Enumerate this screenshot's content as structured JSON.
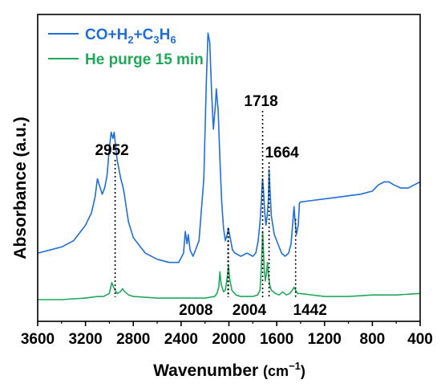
{
  "chart_data": {
    "type": "line",
    "xlabel": "Wavenumber",
    "xlabel_unit": "(cm",
    "xlabel_unit_sup": "−1",
    "xlabel_unit_close": ")",
    "ylabel": "Absorbance (a.u.)",
    "xlim": [
      3600,
      400
    ],
    "x_reversed": true,
    "x_ticks": [
      3600,
      3200,
      2800,
      2400,
      2000,
      1600,
      1200,
      800,
      400
    ],
    "y_ticks_shown": false,
    "grid": false,
    "legend_position": "top-left",
    "legend": {
      "entry1": {
        "p1": "CO+H",
        "s1": "2",
        "p2": "+C",
        "s2": "3",
        "p3": "H",
        "s3": "6"
      },
      "entry2": "He purge 15 min"
    },
    "series": [
      {
        "name": "CO+H2+C3H6",
        "color": "#1f6fd6",
        "points": [
          [
            3600,
            0.18
          ],
          [
            3500,
            0.19
          ],
          [
            3400,
            0.2
          ],
          [
            3300,
            0.22
          ],
          [
            3200,
            0.27
          ],
          [
            3150,
            0.31
          ],
          [
            3120,
            0.36
          ],
          [
            3100,
            0.42
          ],
          [
            3085,
            0.4
          ],
          [
            3060,
            0.37
          ],
          [
            3040,
            0.39
          ],
          [
            3020,
            0.43
          ],
          [
            3000,
            0.52
          ],
          [
            2985,
            0.57
          ],
          [
            2970,
            0.55
          ],
          [
            2960,
            0.57
          ],
          [
            2952,
            0.54
          ],
          [
            2935,
            0.48
          ],
          [
            2920,
            0.45
          ],
          [
            2905,
            0.42
          ],
          [
            2890,
            0.4
          ],
          [
            2875,
            0.37
          ],
          [
            2860,
            0.33
          ],
          [
            2840,
            0.28
          ],
          [
            2800,
            0.23
          ],
          [
            2760,
            0.21
          ],
          [
            2700,
            0.18
          ],
          [
            2600,
            0.16
          ],
          [
            2500,
            0.15
          ],
          [
            2420,
            0.15
          ],
          [
            2380,
            0.18
          ],
          [
            2365,
            0.25
          ],
          [
            2350,
            0.21
          ],
          [
            2340,
            0.24
          ],
          [
            2325,
            0.19
          ],
          [
            2300,
            0.17
          ],
          [
            2250,
            0.22
          ],
          [
            2210,
            0.42
          ],
          [
            2190,
            0.72
          ],
          [
            2175,
            0.89
          ],
          [
            2160,
            0.86
          ],
          [
            2145,
            0.7
          ],
          [
            2130,
            0.58
          ],
          [
            2115,
            0.65
          ],
          [
            2105,
            0.71
          ],
          [
            2090,
            0.64
          ],
          [
            2075,
            0.48
          ],
          [
            2060,
            0.34
          ],
          [
            2045,
            0.26
          ],
          [
            2030,
            0.22
          ],
          [
            2015,
            0.24
          ],
          [
            2005,
            0.26
          ],
          [
            1990,
            0.23
          ],
          [
            1970,
            0.19
          ],
          [
            1950,
            0.18
          ],
          [
            1900,
            0.17
          ],
          [
            1850,
            0.18
          ],
          [
            1800,
            0.17
          ],
          [
            1775,
            0.18
          ],
          [
            1755,
            0.22
          ],
          [
            1740,
            0.28
          ],
          [
            1728,
            0.35
          ],
          [
            1722,
            0.4
          ],
          [
            1718,
            0.42
          ],
          [
            1712,
            0.39
          ],
          [
            1700,
            0.31
          ],
          [
            1690,
            0.27
          ],
          [
            1680,
            0.3
          ],
          [
            1670,
            0.35
          ],
          [
            1664,
            0.45
          ],
          [
            1656,
            0.38
          ],
          [
            1645,
            0.3
          ],
          [
            1620,
            0.24
          ],
          [
            1590,
            0.21
          ],
          [
            1560,
            0.18
          ],
          [
            1530,
            0.17
          ],
          [
            1500,
            0.18
          ],
          [
            1480,
            0.21
          ],
          [
            1465,
            0.28
          ],
          [
            1455,
            0.33
          ],
          [
            1448,
            0.29
          ],
          [
            1435,
            0.24
          ],
          [
            1420,
            0.27
          ],
          [
            1410,
            0.34
          ],
          [
            1400,
            0.345
          ],
          [
            1300,
            0.35
          ],
          [
            1200,
            0.355
          ],
          [
            1100,
            0.36
          ],
          [
            1000,
            0.365
          ],
          [
            900,
            0.37
          ],
          [
            800,
            0.38
          ],
          [
            750,
            0.4
          ],
          [
            700,
            0.41
          ],
          [
            660,
            0.41
          ],
          [
            620,
            0.4
          ],
          [
            560,
            0.39
          ],
          [
            500,
            0.39
          ],
          [
            450,
            0.4
          ],
          [
            400,
            0.41
          ]
        ]
      },
      {
        "name": "He purge 15 min",
        "color": "#1faa5a",
        "points": [
          [
            3600,
            0.03
          ],
          [
            3400,
            0.03
          ],
          [
            3200,
            0.035
          ],
          [
            3100,
            0.04
          ],
          [
            3050,
            0.04
          ],
          [
            3000,
            0.05
          ],
          [
            2980,
            0.085
          ],
          [
            2965,
            0.07
          ],
          [
            2952,
            0.06
          ],
          [
            2935,
            0.05
          ],
          [
            2910,
            0.055
          ],
          [
            2890,
            0.065
          ],
          [
            2870,
            0.055
          ],
          [
            2840,
            0.045
          ],
          [
            2800,
            0.04
          ],
          [
            2600,
            0.035
          ],
          [
            2400,
            0.035
          ],
          [
            2200,
            0.035
          ],
          [
            2120,
            0.04
          ],
          [
            2100,
            0.05
          ],
          [
            2085,
            0.07
          ],
          [
            2075,
            0.12
          ],
          [
            2065,
            0.08
          ],
          [
            2045,
            0.055
          ],
          [
            2030,
            0.06
          ],
          [
            2015,
            0.1
          ],
          [
            2004,
            0.14
          ],
          [
            1995,
            0.1
          ],
          [
            1975,
            0.06
          ],
          [
            1940,
            0.045
          ],
          [
            1900,
            0.04
          ],
          [
            1800,
            0.04
          ],
          [
            1760,
            0.045
          ],
          [
            1740,
            0.06
          ],
          [
            1728,
            0.14
          ],
          [
            1722,
            0.2
          ],
          [
            1718,
            0.25
          ],
          [
            1712,
            0.2
          ],
          [
            1705,
            0.13
          ],
          [
            1695,
            0.09
          ],
          [
            1685,
            0.12
          ],
          [
            1678,
            0.15
          ],
          [
            1670,
            0.11
          ],
          [
            1660,
            0.08
          ],
          [
            1645,
            0.06
          ],
          [
            1610,
            0.05
          ],
          [
            1580,
            0.045
          ],
          [
            1550,
            0.055
          ],
          [
            1520,
            0.045
          ],
          [
            1490,
            0.05
          ],
          [
            1470,
            0.06
          ],
          [
            1455,
            0.07
          ],
          [
            1442,
            0.06
          ],
          [
            1425,
            0.05
          ],
          [
            1410,
            0.05
          ],
          [
            1200,
            0.04
          ],
          [
            1000,
            0.04
          ],
          [
            800,
            0.045
          ],
          [
            600,
            0.045
          ],
          [
            400,
            0.05
          ]
        ]
      }
    ],
    "annotations": [
      {
        "label": "2952",
        "x": 2952,
        "placement": "above"
      },
      {
        "label": "1718",
        "x": 1718,
        "placement": "above"
      },
      {
        "label": "1664",
        "x": 1664,
        "placement": "above"
      },
      {
        "label": "2008",
        "x": 2008,
        "placement": "below"
      },
      {
        "label": "2004",
        "x": 2004,
        "placement": "below"
      },
      {
        "label": "1442",
        "x": 1442,
        "placement": "below"
      }
    ]
  }
}
